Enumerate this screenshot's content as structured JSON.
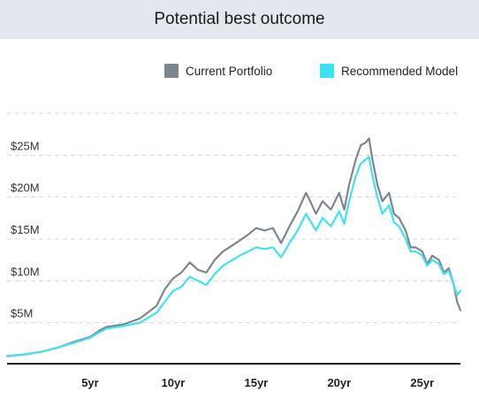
{
  "header": {
    "title": "Potential best outcome"
  },
  "legend": {
    "current": {
      "label": "Current Portfolio",
      "color": "#7d8690"
    },
    "recommended": {
      "label": "Recommended Model",
      "color": "#3ee2f4"
    }
  },
  "chart_data": {
    "type": "line",
    "title": "Potential best outcome",
    "xlabel": "",
    "ylabel": "",
    "xlim": [
      0,
      27.3
    ],
    "ylim": [
      0,
      30
    ],
    "y_ticks": [
      5,
      10,
      15,
      20,
      25,
      30
    ],
    "y_tick_labels": [
      "$5M",
      "$10M",
      "$15M",
      "$20M",
      "$25M",
      ""
    ],
    "x_ticks": [
      5,
      10,
      15,
      20,
      25
    ],
    "x_tick_labels": [
      "5yr",
      "10yr",
      "15yr",
      "20yr",
      "25yr"
    ],
    "grid": "horizontal-dashed",
    "legend_position": "top-right",
    "series": [
      {
        "name": "Current Portfolio",
        "color": "#7d8690",
        "points": [
          [
            0,
            1.0
          ],
          [
            1,
            1.2
          ],
          [
            2,
            1.5
          ],
          [
            3,
            2.0
          ],
          [
            4,
            2.7
          ],
          [
            5,
            3.3
          ],
          [
            5.5,
            4.0
          ],
          [
            6,
            4.5
          ],
          [
            7,
            4.8
          ],
          [
            8,
            5.5
          ],
          [
            9,
            7.0
          ],
          [
            9.5,
            9.0
          ],
          [
            10,
            10.3
          ],
          [
            10.5,
            11.0
          ],
          [
            11,
            12.2
          ],
          [
            11.5,
            11.3
          ],
          [
            12,
            11.0
          ],
          [
            12.5,
            12.5
          ],
          [
            13,
            13.5
          ],
          [
            14,
            14.8
          ],
          [
            14.5,
            15.5
          ],
          [
            15,
            16.3
          ],
          [
            15.5,
            16.0
          ],
          [
            16,
            16.3
          ],
          [
            16.5,
            14.5
          ],
          [
            17,
            16.5
          ],
          [
            17.5,
            18.3
          ],
          [
            18,
            20.5
          ],
          [
            18.3,
            19.3
          ],
          [
            18.6,
            18.0
          ],
          [
            19,
            19.5
          ],
          [
            19.5,
            18.5
          ],
          [
            20,
            20.5
          ],
          [
            20.3,
            18.5
          ],
          [
            20.6,
            21.5
          ],
          [
            21,
            24.5
          ],
          [
            21.3,
            26.2
          ],
          [
            21.6,
            26.5
          ],
          [
            21.8,
            27.0
          ],
          [
            22,
            24.5
          ],
          [
            22.3,
            21.5
          ],
          [
            22.6,
            19.5
          ],
          [
            23,
            20.5
          ],
          [
            23.3,
            18.0
          ],
          [
            23.6,
            17.5
          ],
          [
            24,
            16.0
          ],
          [
            24.3,
            14.0
          ],
          [
            24.6,
            14.0
          ],
          [
            25,
            13.5
          ],
          [
            25.3,
            12.0
          ],
          [
            25.6,
            13.0
          ],
          [
            26,
            12.5
          ],
          [
            26.3,
            11.0
          ],
          [
            26.6,
            11.5
          ],
          [
            26.9,
            9.5
          ],
          [
            27.1,
            7.5
          ],
          [
            27.3,
            6.5
          ]
        ]
      },
      {
        "name": "Recommended Model",
        "color": "#3ee2f4",
        "points": [
          [
            0,
            1.0
          ],
          [
            1,
            1.2
          ],
          [
            2,
            1.5
          ],
          [
            3,
            2.0
          ],
          [
            4,
            2.6
          ],
          [
            5,
            3.2
          ],
          [
            5.5,
            3.8
          ],
          [
            6,
            4.3
          ],
          [
            7,
            4.6
          ],
          [
            8,
            5.0
          ],
          [
            9,
            6.2
          ],
          [
            9.5,
            7.5
          ],
          [
            10,
            8.8
          ],
          [
            10.5,
            9.3
          ],
          [
            11,
            10.5
          ],
          [
            11.5,
            10.0
          ],
          [
            12,
            9.5
          ],
          [
            12.5,
            10.8
          ],
          [
            13,
            11.8
          ],
          [
            14,
            13.0
          ],
          [
            14.5,
            13.5
          ],
          [
            15,
            14.0
          ],
          [
            15.5,
            13.8
          ],
          [
            16,
            14.0
          ],
          [
            16.5,
            12.8
          ],
          [
            17,
            14.5
          ],
          [
            17.5,
            16.0
          ],
          [
            18,
            18.0
          ],
          [
            18.3,
            17.0
          ],
          [
            18.6,
            16.0
          ],
          [
            19,
            17.5
          ],
          [
            19.5,
            16.5
          ],
          [
            20,
            18.3
          ],
          [
            20.3,
            16.8
          ],
          [
            20.6,
            19.5
          ],
          [
            21,
            22.5
          ],
          [
            21.3,
            24.0
          ],
          [
            21.6,
            24.5
          ],
          [
            21.8,
            24.8
          ],
          [
            22,
            22.5
          ],
          [
            22.3,
            20.0
          ],
          [
            22.6,
            18.0
          ],
          [
            23,
            19.0
          ],
          [
            23.3,
            17.0
          ],
          [
            23.6,
            16.5
          ],
          [
            24,
            15.0
          ],
          [
            24.3,
            13.5
          ],
          [
            24.6,
            13.5
          ],
          [
            25,
            13.0
          ],
          [
            25.3,
            11.8
          ],
          [
            25.6,
            12.5
          ],
          [
            26,
            12.0
          ],
          [
            26.3,
            10.8
          ],
          [
            26.6,
            11.2
          ],
          [
            26.9,
            9.5
          ],
          [
            27.1,
            8.3
          ],
          [
            27.3,
            8.8
          ]
        ]
      }
    ]
  }
}
